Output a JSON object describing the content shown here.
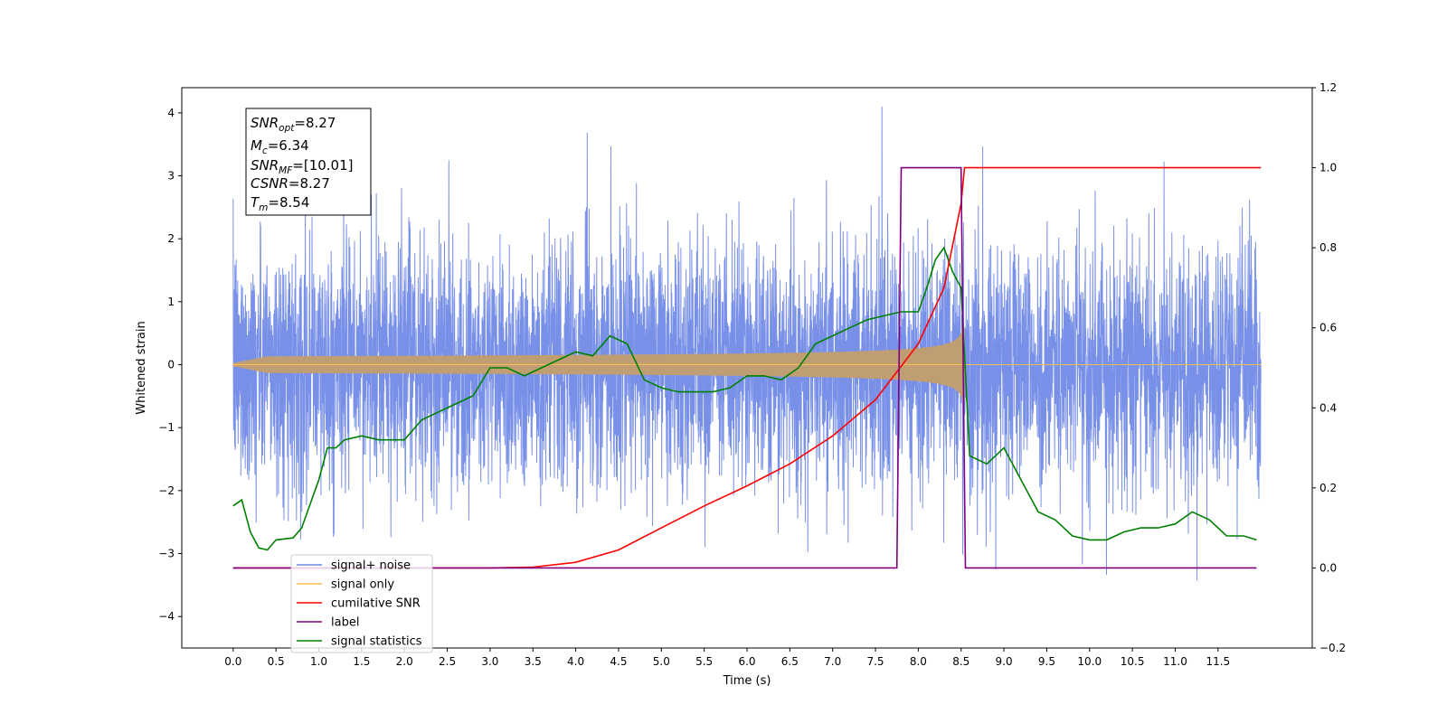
{
  "chart_data": {
    "type": "line",
    "title": "",
    "xlabel": "Time (s)",
    "ylabel": "Whitened strain",
    "y2label": "",
    "xlim": [
      -0.6,
      12.6
    ],
    "ylim": [
      -4.5,
      4.4
    ],
    "y2lim": [
      -0.2,
      1.2
    ],
    "grid": false,
    "legend_position": "lower-left",
    "x_ticks": [
      "0.0",
      "0.5",
      "1.0",
      "1.5",
      "2.0",
      "2.5",
      "3.0",
      "3.5",
      "4.0",
      "4.5",
      "5.0",
      "5.5",
      "6.0",
      "6.5",
      "7.0",
      "7.5",
      "8.0",
      "8.5",
      "9.0",
      "9.5",
      "10.0",
      "10.5",
      "11.0",
      "11.5"
    ],
    "y_ticks": [
      "-4",
      "-3",
      "-2",
      "-1",
      "0",
      "1",
      "2",
      "3",
      "4"
    ],
    "y2_ticks": [
      "-0.2",
      "0.0",
      "0.2",
      "0.4",
      "0.6",
      "0.8",
      "1.0",
      "1.2"
    ],
    "annotation": {
      "lines": [
        {
          "label": "SNR",
          "sub": "opt",
          "value": "=8.27"
        },
        {
          "label": "M",
          "sub": "c",
          "value": "=6.34"
        },
        {
          "label": "SNR",
          "sub": "MF",
          "value": "=[10.01]"
        },
        {
          "label": "CSNR",
          "sub": "",
          "value": "=8.27"
        },
        {
          "label": "T",
          "sub": "m",
          "value": "=8.54"
        }
      ]
    },
    "series": [
      {
        "name": "signal+ noise",
        "color": "#6c87e6",
        "axis": "left",
        "kind": "noise",
        "x_range": [
          0.0,
          12.0
        ],
        "std": 0.95
      },
      {
        "name": "signal only",
        "color": "#ffbb55",
        "axis": "left",
        "kind": "chirp",
        "x_range": [
          0.0,
          8.54
        ],
        "peak_amplitude": 0.6
      },
      {
        "name": "cumilative SNR",
        "color": "#ff0000",
        "axis": "right",
        "x": [
          0.0,
          3.0,
          3.5,
          4.0,
          4.5,
          5.0,
          5.5,
          6.0,
          6.5,
          7.0,
          7.5,
          8.0,
          8.3,
          8.5,
          8.54,
          12.0
        ],
        "y": [
          0.0,
          0.0,
          0.002,
          0.014,
          0.045,
          0.1,
          0.155,
          0.205,
          0.26,
          0.33,
          0.42,
          0.56,
          0.7,
          0.91,
          1.0,
          1.0
        ]
      },
      {
        "name": "label",
        "color": "#800080",
        "axis": "right",
        "x": [
          0.0,
          7.75,
          7.8,
          8.5,
          8.55,
          11.95
        ],
        "y": [
          0.0,
          0.0,
          1.0,
          1.0,
          0.0,
          0.0
        ]
      },
      {
        "name": "signal statistics",
        "color": "#008000",
        "axis": "right",
        "x": [
          0.0,
          0.1,
          0.2,
          0.3,
          0.4,
          0.5,
          0.7,
          0.8,
          0.9,
          1.0,
          1.1,
          1.2,
          1.3,
          1.5,
          1.7,
          2.0,
          2.2,
          2.4,
          2.6,
          2.8,
          3.0,
          3.2,
          3.4,
          3.6,
          3.8,
          4.0,
          4.2,
          4.4,
          4.6,
          4.8,
          5.0,
          5.2,
          5.4,
          5.6,
          5.8,
          6.0,
          6.2,
          6.4,
          6.6,
          6.8,
          7.0,
          7.2,
          7.4,
          7.6,
          7.8,
          8.0,
          8.1,
          8.2,
          8.3,
          8.4,
          8.5,
          8.6,
          8.8,
          9.0,
          9.2,
          9.4,
          9.6,
          9.8,
          10.0,
          10.2,
          10.4,
          10.6,
          10.8,
          11.0,
          11.2,
          11.4,
          11.6,
          11.8,
          11.95
        ],
        "y": [
          0.155,
          0.17,
          0.09,
          0.05,
          0.045,
          0.07,
          0.075,
          0.1,
          0.16,
          0.22,
          0.3,
          0.3,
          0.32,
          0.33,
          0.32,
          0.32,
          0.37,
          0.39,
          0.41,
          0.43,
          0.5,
          0.5,
          0.48,
          0.5,
          0.52,
          0.54,
          0.53,
          0.58,
          0.56,
          0.47,
          0.45,
          0.44,
          0.44,
          0.44,
          0.45,
          0.48,
          0.48,
          0.47,
          0.5,
          0.56,
          0.58,
          0.6,
          0.62,
          0.63,
          0.64,
          0.64,
          0.7,
          0.77,
          0.8,
          0.74,
          0.7,
          0.28,
          0.26,
          0.3,
          0.22,
          0.14,
          0.12,
          0.08,
          0.07,
          0.07,
          0.09,
          0.1,
          0.1,
          0.11,
          0.14,
          0.12,
          0.08,
          0.08,
          0.07
        ]
      }
    ],
    "legend_entries": [
      "signal+ noise",
      "signal only",
      "cumilative SNR",
      "label",
      "signal statistics"
    ]
  }
}
